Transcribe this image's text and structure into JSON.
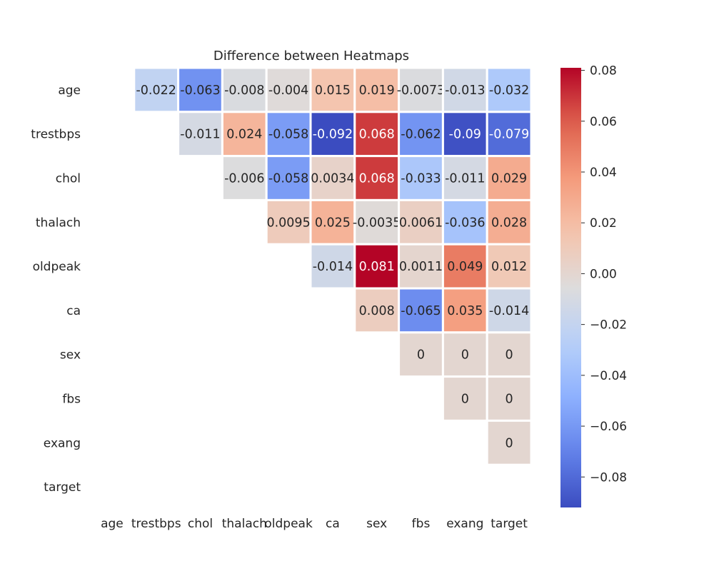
{
  "chart_data": {
    "type": "heatmap",
    "title": "Difference between Heatmaps",
    "labels": [
      "age",
      "trestbps",
      "chol",
      "thalach",
      "oldpeak",
      "ca",
      "sex",
      "fbs",
      "exang",
      "target"
    ],
    "cells": [
      [
        0,
        1,
        -0.022
      ],
      [
        0,
        2,
        -0.063
      ],
      [
        0,
        3,
        -0.008
      ],
      [
        0,
        4,
        -0.004
      ],
      [
        0,
        5,
        0.015
      ],
      [
        0,
        6,
        0.019
      ],
      [
        0,
        7,
        -0.0073
      ],
      [
        0,
        8,
        -0.013
      ],
      [
        0,
        9,
        -0.032
      ],
      [
        1,
        2,
        -0.011
      ],
      [
        1,
        3,
        0.024
      ],
      [
        1,
        4,
        -0.058
      ],
      [
        1,
        5,
        -0.092
      ],
      [
        1,
        6,
        0.068
      ],
      [
        1,
        7,
        -0.062
      ],
      [
        1,
        8,
        -0.09
      ],
      [
        1,
        9,
        -0.079
      ],
      [
        2,
        3,
        -0.006
      ],
      [
        2,
        4,
        -0.058
      ],
      [
        2,
        5,
        0.0034
      ],
      [
        2,
        6,
        0.068
      ],
      [
        2,
        7,
        -0.033
      ],
      [
        2,
        8,
        -0.011
      ],
      [
        2,
        9,
        0.029
      ],
      [
        3,
        4,
        0.0095
      ],
      [
        3,
        5,
        0.025
      ],
      [
        3,
        6,
        -0.0035
      ],
      [
        3,
        7,
        0.0061
      ],
      [
        3,
        8,
        -0.036
      ],
      [
        3,
        9,
        0.028
      ],
      [
        4,
        5,
        -0.014
      ],
      [
        4,
        6,
        0.081
      ],
      [
        4,
        7,
        0.0011
      ],
      [
        4,
        8,
        0.049
      ],
      [
        4,
        9,
        0.012
      ],
      [
        5,
        6,
        0.008
      ],
      [
        5,
        7,
        -0.065
      ],
      [
        5,
        8,
        0.035
      ],
      [
        5,
        9,
        -0.014
      ],
      [
        6,
        7,
        0
      ],
      [
        6,
        8,
        0
      ],
      [
        6,
        9,
        0
      ],
      [
        7,
        8,
        0
      ],
      [
        7,
        9,
        0
      ],
      [
        8,
        9,
        0
      ]
    ],
    "colormap": "coolwarm",
    "vmin": -0.092,
    "vmax": 0.081,
    "colorbar_ticks": [
      {
        "value": 0.08,
        "label": "0.08"
      },
      {
        "value": 0.06,
        "label": "0.06"
      },
      {
        "value": 0.04,
        "label": "0.04"
      },
      {
        "value": 0.02,
        "label": "0.02"
      },
      {
        "value": 0.0,
        "label": "0.00"
      },
      {
        "value": -0.02,
        "label": "−0.02"
      },
      {
        "value": -0.04,
        "label": "−0.04"
      },
      {
        "value": -0.06,
        "label": "−0.06"
      },
      {
        "value": -0.08,
        "label": "−0.08"
      }
    ],
    "mask": "lower-triangle-and-diagonal",
    "annotations": true,
    "colors": {
      "cool": "#3b4cc0",
      "neutral": "#dddcdc",
      "warm": "#b40426",
      "cell_border": "#ffffff"
    }
  }
}
